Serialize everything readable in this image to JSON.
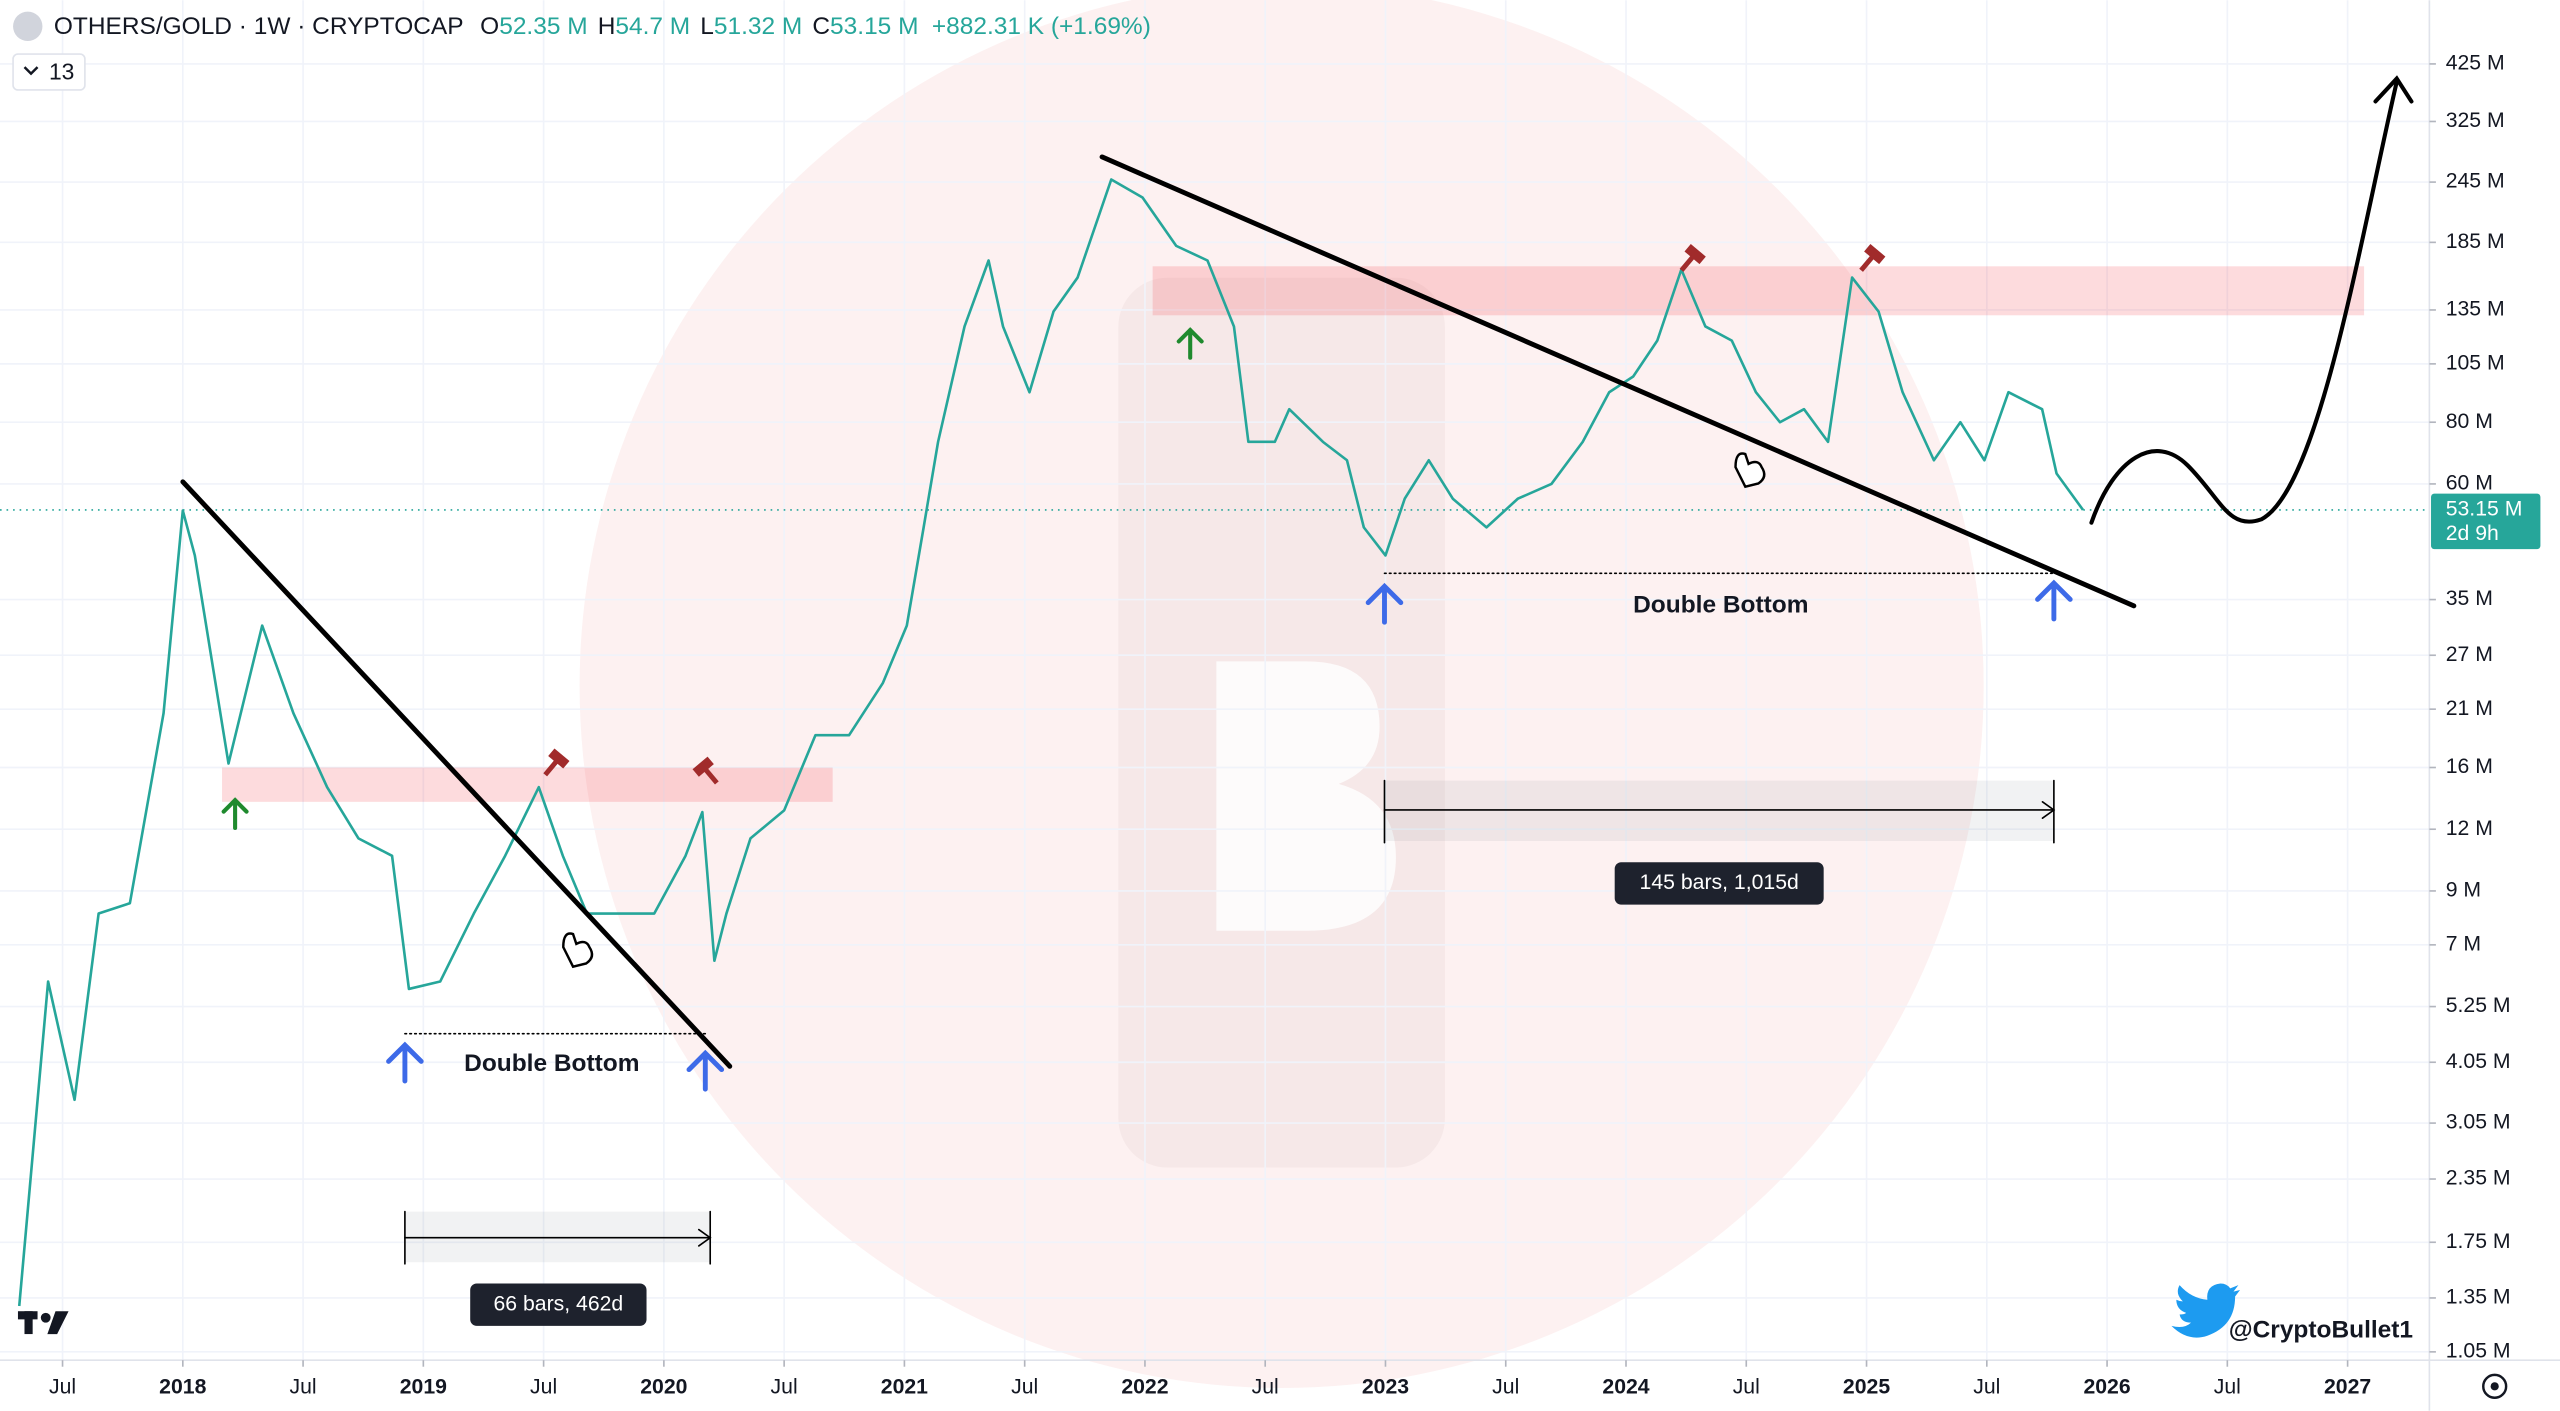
{
  "chart_data": {
    "type": "line",
    "header": {
      "symbol": "OTHERS/GOLD · 1W · CRYPTOCAP",
      "ohlc": [
        {
          "label": "O",
          "value": "52.35 M"
        },
        {
          "label": "H",
          "value": "54.7 M"
        },
        {
          "label": "L",
          "value": "51.32 M"
        },
        {
          "label": "C",
          "value": "53.15 M"
        }
      ],
      "change": "+882.31 K (+1.69%)"
    },
    "indicator_count": 13,
    "color": "#26a69a",
    "log_scale": true,
    "grid": true,
    "x": [
      2017.32,
      2017.44,
      2017.55,
      2017.65,
      2017.78,
      2017.92,
      2018.0,
      2018.05,
      2018.19,
      2018.33,
      2018.46,
      2018.6,
      2018.73,
      2018.87,
      2018.94,
      2019.07,
      2019.21,
      2019.34,
      2019.48,
      2019.58,
      2019.68,
      2019.82,
      2019.96,
      2020.09,
      2020.16,
      2020.21,
      2020.26,
      2020.36,
      2020.5,
      2020.63,
      2020.77,
      2020.91,
      2021.01,
      2021.08,
      2021.14,
      2021.25,
      2021.35,
      2021.41,
      2021.52,
      2021.62,
      2021.72,
      2021.86,
      2021.99,
      2022.13,
      2022.26,
      2022.37,
      2022.43,
      2022.54,
      2022.6,
      2022.74,
      2022.84,
      2022.91,
      2023.0,
      2023.08,
      2023.18,
      2023.28,
      2023.42,
      2023.55,
      2023.69,
      2023.82,
      2023.93,
      2024.03,
      2024.13,
      2024.23,
      2024.33,
      2024.44,
      2024.54,
      2024.64,
      2024.74,
      2024.84,
      2024.94,
      2025.05,
      2025.15,
      2025.28,
      2025.39,
      2025.49,
      2025.59,
      2025.73,
      2025.79,
      2025.9
    ],
    "values": [
      1300000,
      5900000,
      3400000,
      8100000,
      8500000,
      20600000,
      53000000,
      43000000,
      16300000,
      31000000,
      20600000,
      14600000,
      11500000,
      10600000,
      5700000,
      5900000,
      8100000,
      10600000,
      14600000,
      10600000,
      8100000,
      8100000,
      8100000,
      10600000,
      13000000,
      6500000,
      8100000,
      11500000,
      13100000,
      18600000,
      18600000,
      23700000,
      31000000,
      49000000,
      73000000,
      125000000,
      170000000,
      125000000,
      92000000,
      134000000,
      157000000,
      248000000,
      228000000,
      182000000,
      170000000,
      125000000,
      73000000,
      73000000,
      85000000,
      73000000,
      67000000,
      49000000,
      43000000,
      56000000,
      67000000,
      56000000,
      49000000,
      56000000,
      60000000,
      73000000,
      92000000,
      99000000,
      117000000,
      163000000,
      125000000,
      117000000,
      92000000,
      80000000,
      85000000,
      73000000,
      157000000,
      134000000,
      92000000,
      67000000,
      80000000,
      67000000,
      92000000,
      85000000,
      63000000,
      53150000
    ],
    "xlim": [
      2017.24,
      2027.34
    ],
    "xticks": [
      {
        "value": 2017.5,
        "label": "Jul"
      },
      2018,
      {
        "value": 2018.5,
        "label": "Jul"
      },
      2019,
      {
        "value": 2019.5,
        "label": "Jul"
      },
      2020,
      {
        "value": 2020.5,
        "label": "Jul"
      },
      2021,
      {
        "value": 2021.5,
        "label": "Jul"
      },
      2022,
      {
        "value": 2022.5,
        "label": "Jul"
      },
      2023,
      {
        "value": 2023.5,
        "label": "Jul"
      },
      2024,
      {
        "value": 2024.5,
        "label": "Jul"
      },
      2025,
      {
        "value": 2025.5,
        "label": "Jul"
      },
      2026,
      {
        "value": 2026.5,
        "label": "Jul"
      },
      2027
    ],
    "ylim": [
      1010000,
      572000000
    ],
    "yticks": [
      {
        "value": 425000000,
        "label": "425 M"
      },
      {
        "value": 325000000,
        "label": "325 M"
      },
      {
        "value": 245000000,
        "label": "245 M"
      },
      {
        "value": 185000000,
        "label": "185 M"
      },
      {
        "value": 135000000,
        "label": "135 M"
      },
      {
        "value": 105000000,
        "label": "105 M"
      },
      {
        "value": 80000000,
        "label": "80 M"
      },
      {
        "value": 60000000,
        "label": "60 M"
      },
      {
        "value": 35000000,
        "label": "35 M"
      },
      {
        "value": 27000000,
        "label": "27 M"
      },
      {
        "value": 21000000,
        "label": "21 M"
      },
      {
        "value": 16000000,
        "label": "16 M"
      },
      {
        "value": 12000000,
        "label": "12 M"
      },
      {
        "value": 9000000,
        "label": "9 M"
      },
      {
        "value": 7000000,
        "label": "7 M"
      },
      {
        "value": 5250000,
        "label": "5.25 M"
      },
      {
        "value": 4050000,
        "label": "4.05 M"
      },
      {
        "value": 3050000,
        "label": "3.05 M"
      },
      {
        "value": 2350000,
        "label": "2.35 M"
      },
      {
        "value": 1750000,
        "label": "1.75 M"
      },
      {
        "value": 1350000,
        "label": "1.35 M"
      },
      {
        "value": 1050000,
        "label": "1.05 M"
      }
    ],
    "price_label": "53.15 M",
    "countdown": "2d 9h",
    "annotations": [
      "Double Bottom",
      "Double Bottom"
    ],
    "measures": [
      "66 bars, 462d",
      "145 bars, 1,015d"
    ],
    "watermark": "@CryptoBullet1"
  }
}
